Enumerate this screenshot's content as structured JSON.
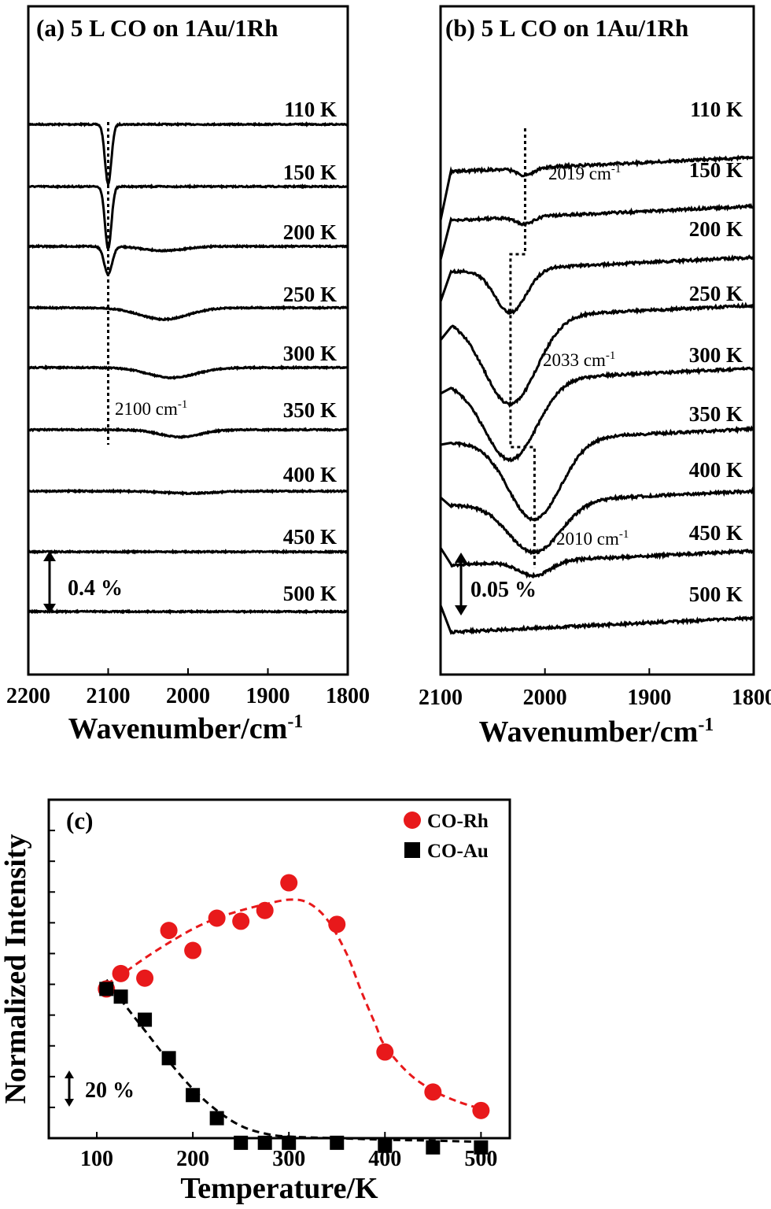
{
  "colors": {
    "rh": "#e8191b",
    "au": "#000000",
    "trace": "#000000"
  },
  "chart_data": [
    {
      "type": "line",
      "panel_label": "(a) 5 L CO on 1Au/1Rh",
      "xlabel": "Wavenumber/cm",
      "xlabel_sup": "-1",
      "xlim": [
        2200,
        1800
      ],
      "x_reversed": true,
      "x_ticks": [
        "2200",
        "2100",
        "2000",
        "1900",
        "1800"
      ],
      "scale_bar": "0.4 %",
      "peak_annotation": {
        "text": "2100 cm",
        "sup": "-1",
        "wavenumber": 2100
      },
      "series": [
        {
          "name": "110 K",
          "peaks": [
            {
              "center": 2100,
              "depth": 0.82,
              "width": 4
            }
          ]
        },
        {
          "name": "150 K",
          "peaks": [
            {
              "center": 2100,
              "depth": 0.86,
              "width": 4
            }
          ]
        },
        {
          "name": "200 K",
          "peaks": [
            {
              "center": 2100,
              "depth": 0.38,
              "width": 5
            },
            {
              "center": 2030,
              "depth": 0.06,
              "width": 25
            }
          ]
        },
        {
          "name": "250 K",
          "peaks": [
            {
              "center": 2030,
              "depth": 0.16,
              "width": 30
            }
          ]
        },
        {
          "name": "300 K",
          "peaks": [
            {
              "center": 2020,
              "depth": 0.14,
              "width": 30
            }
          ]
        },
        {
          "name": "350 K",
          "peaks": [
            {
              "center": 2010,
              "depth": 0.1,
              "width": 25
            }
          ]
        },
        {
          "name": "400 K",
          "peaks": [
            {
              "center": 2000,
              "depth": 0.03,
              "width": 30
            }
          ]
        },
        {
          "name": "450 K",
          "peaks": []
        },
        {
          "name": "500 K",
          "peaks": []
        }
      ]
    },
    {
      "type": "line",
      "panel_label": "(b) 5 L CO on 1Au/1Rh",
      "xlabel": "Wavenumber/cm",
      "xlabel_sup": "-1",
      "xlim": [
        2100,
        1800
      ],
      "x_reversed": true,
      "x_ticks": [
        "2100",
        "2000",
        "1900",
        "1800"
      ],
      "scale_bar": "0.05 %",
      "peak_annotations": [
        {
          "text": "2019 cm",
          "sup": "-1",
          "wavenumber": 2019
        },
        {
          "text": "2033 cm",
          "sup": "-1",
          "wavenumber": 2033
        },
        {
          "text": "2010 cm",
          "sup": "-1",
          "wavenumber": 2010
        }
      ],
      "series": [
        {
          "name": "110 K",
          "peaks": [
            {
              "center": 2019,
              "depth": 0.05,
              "width": 8
            }
          ]
        },
        {
          "name": "150 K",
          "peaks": [
            {
              "center": 2019,
              "depth": 0.05,
              "width": 8
            }
          ]
        },
        {
          "name": "200 K",
          "peaks": [
            {
              "center": 2033,
              "depth": 0.3,
              "width": 15
            }
          ]
        },
        {
          "name": "250 K",
          "peaks": [
            {
              "center": 2033,
              "depth": 0.6,
              "width": 25
            }
          ]
        },
        {
          "name": "300 K",
          "peaks": [
            {
              "center": 2033,
              "depth": 0.55,
              "width": 25
            }
          ]
        },
        {
          "name": "350 K",
          "peaks": [
            {
              "center": 2010,
              "depth": 0.55,
              "width": 25
            }
          ]
        },
        {
          "name": "400 K",
          "peaks": [
            {
              "center": 2010,
              "depth": 0.35,
              "width": 25
            }
          ]
        },
        {
          "name": "450 K",
          "peaks": [
            {
              "center": 2010,
              "depth": 0.1,
              "width": 15
            }
          ]
        },
        {
          "name": "500 K",
          "peaks": []
        }
      ]
    },
    {
      "type": "scatter",
      "panel_label": "(c)",
      "xlabel": "Temperature/K",
      "ylabel": "Normalized Intensity",
      "xlim": [
        50,
        530
      ],
      "ylim": [
        0,
        110
      ],
      "x_ticks": [
        "100",
        "200",
        "300",
        "400",
        "500"
      ],
      "scale_bar": "20 %",
      "legend_position": "top-right",
      "series": [
        {
          "name": "CO-Rh",
          "color": "#e8191b",
          "marker": "circle",
          "x": [
            110,
            125,
            150,
            175,
            200,
            225,
            250,
            275,
            300,
            350,
            400,
            450,
            500
          ],
          "y": [
            48.5,
            53.5,
            52,
            67.5,
            61,
            71.5,
            70.5,
            74,
            83,
            69.5,
            28,
            15,
            9
          ]
        },
        {
          "name": "CO-Au",
          "color": "#000000",
          "marker": "square",
          "x": [
            110,
            125,
            150,
            175,
            200,
            225,
            250,
            275,
            300,
            350,
            400,
            450,
            500
          ],
          "y": [
            48.5,
            46,
            38.5,
            26,
            14,
            6.5,
            -1.5,
            -1.5,
            -1.5,
            -1.5,
            -2.5,
            -3,
            -3
          ]
        }
      ],
      "fit_curves": [
        {
          "series": "CO-Rh",
          "x": [
            110,
            125,
            150,
            175,
            200,
            225,
            250,
            275,
            300,
            320,
            340,
            360,
            375,
            390,
            400,
            425,
            450,
            475,
            500
          ],
          "y": [
            50,
            53,
            58.5,
            63.5,
            68,
            71.5,
            74,
            76,
            77.5,
            76.5,
            71,
            60,
            48,
            37,
            30,
            21,
            15.5,
            12,
            9.5
          ]
        },
        {
          "series": "CO-Au",
          "x": [
            110,
            125,
            150,
            175,
            200,
            225,
            250,
            275,
            300,
            350,
            400,
            450,
            500
          ],
          "y": [
            51.5,
            45,
            35,
            25,
            16,
            9,
            4,
            1.5,
            0.5,
            0,
            -0.5,
            -0.8,
            -1.2
          ]
        }
      ]
    }
  ]
}
